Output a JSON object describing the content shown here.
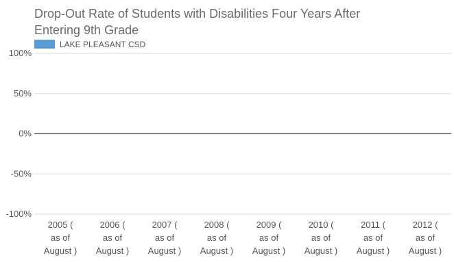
{
  "chart_data": {
    "type": "bar",
    "title_lines": [
      "Drop-Out Rate of Students with Disabilities Four Years After",
      "Entering 9th Grade"
    ],
    "legend": [
      {
        "name": "LAKE PLEASANT CSD",
        "color": "#5b9bd5"
      }
    ],
    "categories": [
      [
        "2005 (",
        "as of",
        "August )"
      ],
      [
        "2006 (",
        "as of",
        "August )"
      ],
      [
        "2007 (",
        "as of",
        "August )"
      ],
      [
        "2008 (",
        "as of",
        "August )"
      ],
      [
        "2009 (",
        "as of",
        "August )"
      ],
      [
        "2010 (",
        "as of",
        "August )"
      ],
      [
        "2011 (",
        "as of",
        "August )"
      ],
      [
        "2012 (",
        "as of",
        "August )"
      ]
    ],
    "series": [
      {
        "name": "LAKE PLEASANT CSD",
        "values": [
          null,
          null,
          null,
          null,
          null,
          null,
          null,
          null
        ]
      }
    ],
    "yticks": [
      {
        "value": 100,
        "label": "100%"
      },
      {
        "value": 50,
        "label": "50%"
      },
      {
        "value": 0,
        "label": "0%"
      },
      {
        "value": -50,
        "label": "-50%"
      },
      {
        "value": -100,
        "label": "-100%"
      }
    ],
    "ylim": [
      -100,
      100
    ],
    "grid": true,
    "legend_position": "top-left",
    "colors": {
      "gridline": "#dddddd",
      "zero_line": "#555555",
      "series": "#5b9bd5"
    }
  }
}
